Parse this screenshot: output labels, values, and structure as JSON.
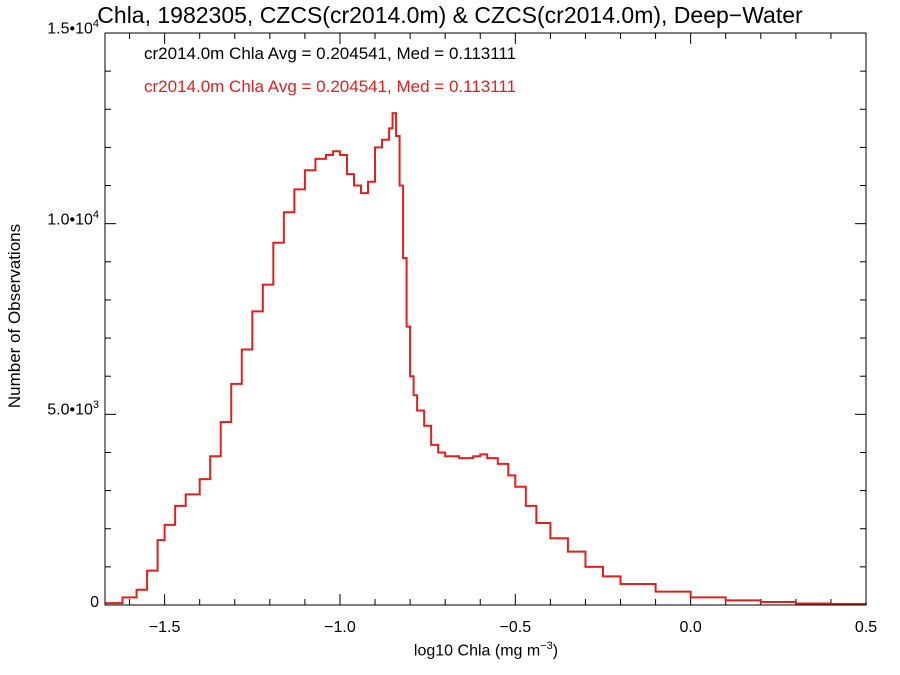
{
  "chart_data": {
    "type": "line",
    "title": "Chla, 1982305, CZCS(cr2014.0m) & CZCS(cr2014.0m), Deep−Water",
    "xlabel_main": "log10 Chla (mg m",
    "xlabel_exp": "−3",
    "xlabel_end": ")",
    "ylabel": "Number of Observations",
    "xlim": [
      -1.67,
      0.5
    ],
    "ylim": [
      0,
      15000
    ],
    "x_ticks": [
      {
        "value": -1.5,
        "label": "−1.5"
      },
      {
        "value": -1.0,
        "label": "−1.0"
      },
      {
        "value": -0.5,
        "label": "−0.5"
      },
      {
        "value": 0.0,
        "label": "0.0"
      },
      {
        "value": 0.5,
        "label": "0.5"
      }
    ],
    "y_ticks": [
      {
        "value": 0,
        "mant": "0",
        "exp": ""
      },
      {
        "value": 5000,
        "mant": "5.0•10",
        "exp": "3"
      },
      {
        "value": 10000,
        "mant": "1.0•10",
        "exp": "4"
      },
      {
        "value": 15000,
        "mant": "1.5•10",
        "exp": "4"
      }
    ],
    "stats": [
      {
        "text": "cr2014.0m Chla Avg = 0.204541, Med = 0.113111",
        "color": "#000000"
      },
      {
        "text": "cr2014.0m Chla Avg = 0.204541, Med = 0.113111",
        "color": "#e0201c"
      }
    ],
    "series": [
      {
        "color": "#e0201c",
        "x": [
          -1.67,
          -1.62,
          -1.58,
          -1.55,
          -1.52,
          -1.5,
          -1.47,
          -1.44,
          -1.4,
          -1.37,
          -1.34,
          -1.31,
          -1.28,
          -1.25,
          -1.22,
          -1.19,
          -1.16,
          -1.13,
          -1.1,
          -1.07,
          -1.04,
          -1.02,
          -1.0,
          -0.98,
          -0.96,
          -0.94,
          -0.92,
          -0.9,
          -0.88,
          -0.86,
          -0.85,
          -0.84,
          -0.83,
          -0.82,
          -0.81,
          -0.8,
          -0.79,
          -0.78,
          -0.76,
          -0.74,
          -0.72,
          -0.7,
          -0.68,
          -0.66,
          -0.62,
          -0.6,
          -0.58,
          -0.55,
          -0.52,
          -0.5,
          -0.47,
          -0.44,
          -0.4,
          -0.35,
          -0.3,
          -0.25,
          -0.2,
          -0.1,
          0.0,
          0.1,
          0.2,
          0.3,
          0.4,
          0.5
        ],
        "y": [
          50,
          200,
          400,
          900,
          1700,
          2100,
          2600,
          2900,
          3300,
          3900,
          4800,
          5800,
          6700,
          7700,
          8400,
          9500,
          10300,
          10900,
          11400,
          11700,
          11800,
          11900,
          11800,
          11300,
          11000,
          10800,
          11100,
          12000,
          12200,
          12500,
          12900,
          12300,
          11000,
          9100,
          7300,
          6000,
          5500,
          5100,
          4700,
          4200,
          4000,
          3900,
          3900,
          3850,
          3900,
          3950,
          3850,
          3700,
          3400,
          3100,
          2600,
          2150,
          1750,
          1400,
          1000,
          750,
          550,
          350,
          200,
          120,
          80,
          40,
          25,
          15
        ]
      }
    ]
  }
}
